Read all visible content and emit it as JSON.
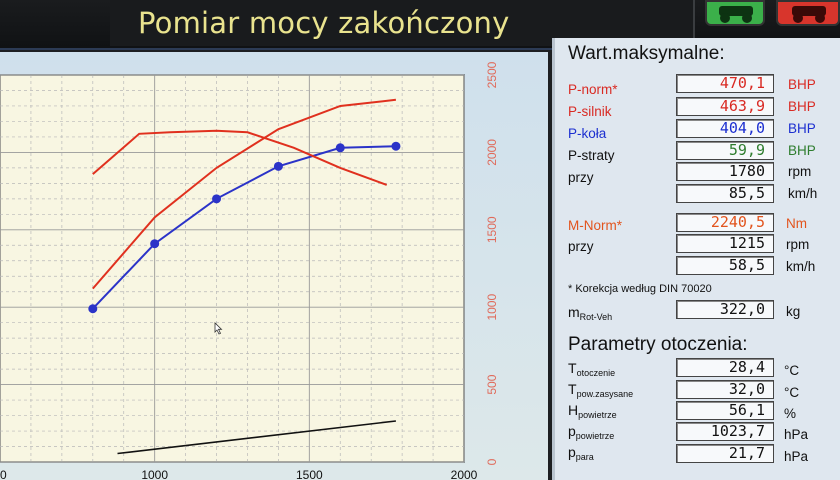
{
  "window": {
    "title": "Pomiar mocy zakończony"
  },
  "colors": {
    "red": "#e0301e",
    "blue": "#2b33c8",
    "black": "#111111"
  },
  "chart_data": {
    "type": "line",
    "x_ticks": [
      1000,
      1500,
      2000
    ],
    "x_first_tick_partial": "0",
    "y_right_ticks": [
      0,
      500,
      1000,
      1500,
      2000,
      2500
    ],
    "xlim": [
      500,
      2000
    ],
    "ylim": [
      0,
      2500
    ],
    "grid": true,
    "series": [
      {
        "color": "red",
        "x": [
          800,
          1000,
          1200,
          1400,
          1600,
          1780
        ],
        "y": [
          1120,
          1580,
          1900,
          2150,
          2300,
          2340
        ]
      },
      {
        "color": "blue",
        "x": [
          800,
          1000,
          1200,
          1400,
          1600,
          1780
        ],
        "y": [
          990,
          1410,
          1700,
          1910,
          2030,
          2040
        ],
        "markers": true
      },
      {
        "color": "red",
        "x": [
          800,
          950,
          1050,
          1200,
          1300,
          1450,
          1600,
          1750
        ],
        "y": [
          1860,
          2120,
          2130,
          2140,
          2130,
          2030,
          1900,
          1790
        ]
      },
      {
        "color": "black",
        "x": [
          880,
          1780
        ],
        "y": [
          55,
          265
        ]
      }
    ]
  },
  "max_values": {
    "header": "Wart.maksymalne:",
    "rows": [
      {
        "label": "P-norm*",
        "value": "470,1",
        "unit": "BHP"
      },
      {
        "label": "P-silnik",
        "value": "463,9",
        "unit": "BHP"
      },
      {
        "label": "P-koła",
        "value": "404,0",
        "unit": "BHP"
      },
      {
        "label": "P-straty",
        "value": "59,9",
        "unit": "BHP"
      },
      {
        "label": "przy",
        "value": "1780",
        "unit": "rpm"
      },
      {
        "label": "",
        "value": "85,5",
        "unit": "km/h"
      }
    ],
    "torque": [
      {
        "label": "M-Norm*",
        "value": "2240,5",
        "unit": "Nm"
      },
      {
        "label": "przy",
        "value": "1215",
        "unit": "rpm"
      },
      {
        "label": "",
        "value": "58,5",
        "unit": "km/h"
      }
    ],
    "correction": "* Korekcja według DIN 70020",
    "mass": {
      "label": "m",
      "sub": "Rot-Veh",
      "value": "322,0",
      "unit": "kg"
    }
  },
  "ambient": {
    "header": "Parametry otoczenia:",
    "rows": [
      {
        "label": "T",
        "sub": "otoczenie",
        "value": "28,4",
        "unit": "°C"
      },
      {
        "label": "T",
        "sub": "pow.zasysane",
        "value": "32,0",
        "unit": "°C"
      },
      {
        "label": "H",
        "sub": "powietrze",
        "value": "56,1",
        "unit": "%"
      },
      {
        "label": "p",
        "sub": "powietrze",
        "value": "1023,7",
        "unit": "hPa"
      },
      {
        "label": "p",
        "sub": "para",
        "value": "21,7",
        "unit": "hPa"
      }
    ]
  }
}
